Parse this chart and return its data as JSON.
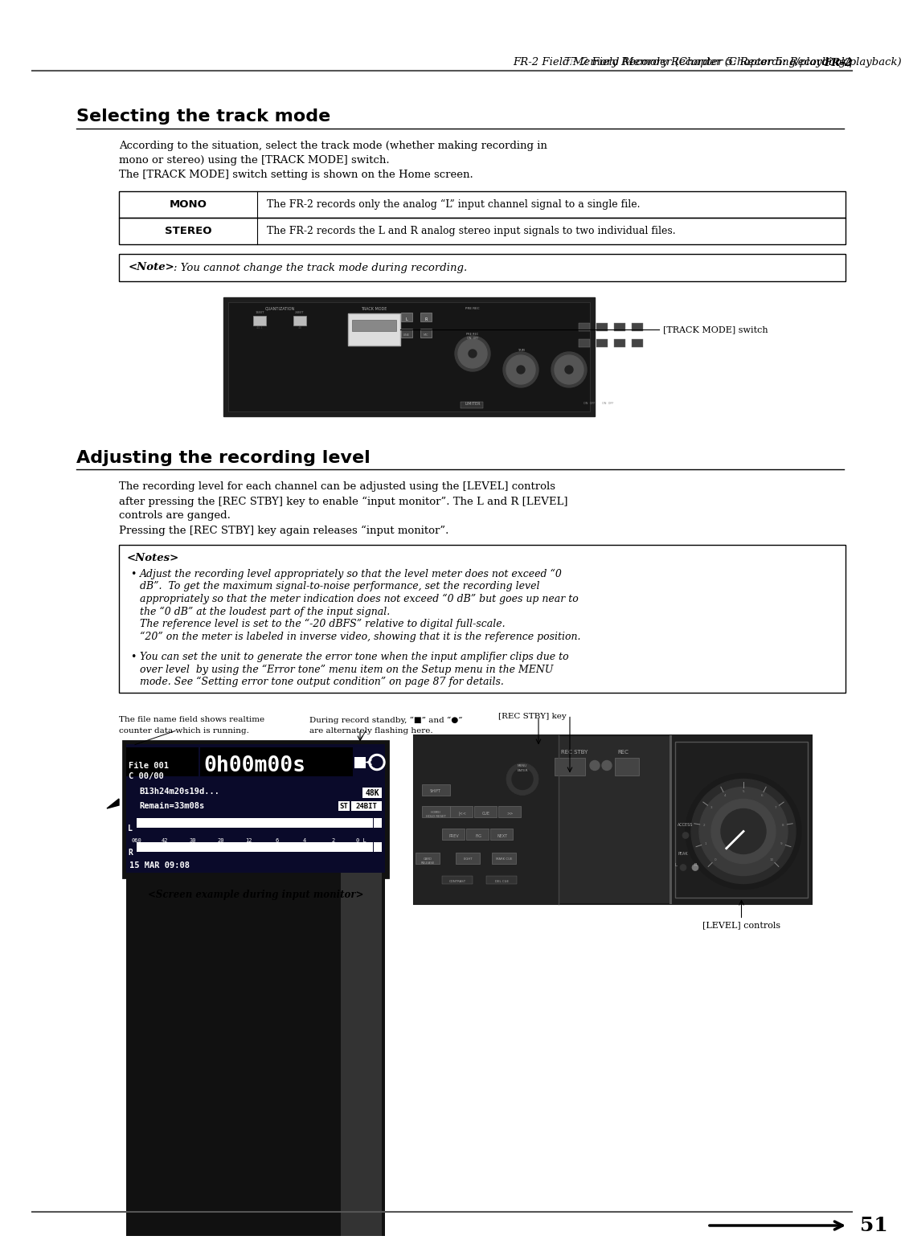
{
  "page_bg": "#ffffff",
  "header_bold": "FR-2",
  "header_normal": " Field Memory Recorder (Chapter 5: Recording/playback)",
  "footer_number": "51",
  "section1_title": "Selecting the track mode",
  "s1_body1": "According to the situation, select the track mode (whether making recording in",
  "s1_body2": "mono or stereo) using the [TRACK MODE] switch.",
  "s1_body3": "The [TRACK MODE] switch setting is shown on the Home screen.",
  "mono_desc": "The FR-2 records only the analog “L” input channel signal to a single file.",
  "stereo_desc": "The FR-2 records the L and R analog stereo input signals to two individual files.",
  "note1_text": ": You cannot change the track mode during recording.",
  "track_mode_label": "[TRACK MODE] switch",
  "section2_title": "Adjusting the recording level",
  "s2_body1": "The recording level for each channel can be adjusted using the [LEVEL] controls",
  "s2_body2": "after pressing the [REC STBY] key to enable “input monitor”. The L and R [LEVEL]",
  "s2_body3": "controls are ganged.",
  "s2_body4": "Pressing the [REC STBY] key again releases “input monitor”.",
  "notes2_b1_lines": [
    "Adjust the recording level appropriately so that the level meter does not exceed “0",
    "dB”.  To get the maximum signal-to-noise performance, set the recording level",
    "appropriately so that the meter indication does not exceed “0 dB” but goes up near to",
    "the “0 dB” at the loudest part of the input signal.",
    "The reference level is set to the “-20 dBFS” relative to digital full-scale.",
    "“20” on the meter is labeled in inverse video, showing that it is the reference position."
  ],
  "notes2_b2_lines": [
    "You can set the unit to generate the error tone when the input amplifier clips due to",
    "over level  by using the “Error tone” menu item on the Setup menu in the MENU",
    "mode. See “Setting error tone output condition” on page 87 for details."
  ],
  "cap1_l1": "The file name field shows realtime",
  "cap1_l2": "counter data which is running.",
  "cap2_l1": "During record standby, “■” and “●”",
  "cap2_l2": "are alternately flashing here.",
  "rec_stby_label": "[REC STBY] key",
  "screen_label": "<Screen example during input monitor>",
  "level_controls_label": "[LEVEL] controls"
}
